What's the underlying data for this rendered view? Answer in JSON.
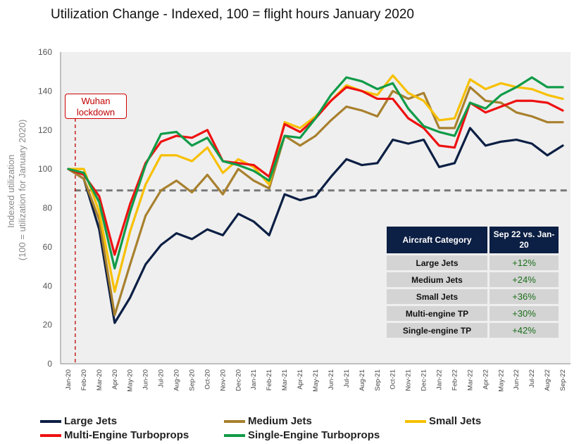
{
  "title": "Utilization Change - Indexed, 100 = flight hours January 2020",
  "annotation": {
    "line1": "Wuhan",
    "line2": "lockdown"
  },
  "table": {
    "headers": [
      "Aircraft Category",
      "Sep 22 vs. Jan-20"
    ],
    "rows": [
      [
        "Large Jets",
        "+12%"
      ],
      [
        "Medium Jets",
        "+24%"
      ],
      [
        "Small Jets",
        "+36%"
      ],
      [
        "Multi-engine TP",
        "+30%"
      ],
      [
        "Single-engine TP",
        "+42%"
      ]
    ]
  },
  "chart_data": {
    "type": "line",
    "title": "Utilization Change - Indexed, 100 = flight hours January 2020",
    "ylabel": "Indexed utilization (100 = utilization for January 2020)",
    "xlabel": "",
    "ylim": [
      0,
      160
    ],
    "yticks": [
      0,
      20,
      40,
      60,
      80,
      100,
      120,
      140,
      160
    ],
    "grid": false,
    "legend_position": "bottom",
    "reference_line": 89,
    "event_line": {
      "x": "Jan-20",
      "label": "Wuhan lockdown"
    },
    "categories": [
      "Jan-20",
      "Feb-20",
      "Mar-20",
      "Apr-20",
      "May-20",
      "Jun-20",
      "Jul-20",
      "Aug-20",
      "Sep-20",
      "Oct-20",
      "Nov-20",
      "Dec-20",
      "Jan-21",
      "Feb-21",
      "Mar-21",
      "Apr-21",
      "May-21",
      "Jun-21",
      "Jul-21",
      "Aug-21",
      "Sep-21",
      "Oct-21",
      "Nov-21",
      "Dec-21",
      "Jan-22",
      "Feb-22",
      "Mar-22",
      "Apr-22",
      "May-22",
      "Jun-22",
      "Jul-22",
      "Aug-22",
      "Sep-22"
    ],
    "series": [
      {
        "name": "Large Jets",
        "color": "#0c1f44",
        "values": [
          100,
          95,
          69,
          21,
          34,
          51,
          61,
          67,
          64,
          69,
          66,
          77,
          73,
          66,
          87,
          84,
          86,
          96,
          105,
          102,
          103,
          115,
          113,
          115,
          101,
          103,
          121,
          112,
          114,
          115,
          113,
          107,
          112
        ]
      },
      {
        "name": "Medium Jets",
        "color": "#a8802e",
        "values": [
          100,
          95,
          74,
          25,
          51,
          76,
          89,
          94,
          88,
          97,
          87,
          100,
          94,
          90,
          117,
          112,
          117,
          125,
          132,
          130,
          127,
          140,
          136,
          139,
          121,
          121,
          142,
          135,
          134,
          129,
          127,
          124,
          124
        ]
      },
      {
        "name": "Small Jets",
        "color": "#f7c000",
        "values": [
          100,
          100,
          78,
          37,
          68,
          92,
          107,
          107,
          104,
          111,
          98,
          105,
          101,
          92,
          124,
          121,
          127,
          135,
          143,
          140,
          138,
          148,
          139,
          135,
          125,
          126,
          146,
          141,
          144,
          142,
          141,
          138,
          136
        ]
      },
      {
        "name": "Multi-Engine Turboprops",
        "color": "#ee1111",
        "values": [
          100,
          97,
          86,
          56,
          82,
          103,
          114,
          117,
          116,
          120,
          104,
          103,
          102,
          96,
          123,
          119,
          126,
          135,
          142,
          140,
          136,
          136,
          126,
          121,
          112,
          111,
          134,
          129,
          132,
          135,
          135,
          134,
          130
        ]
      },
      {
        "name": "Single-Engine Turboprops",
        "color": "#109b48",
        "values": [
          100,
          98,
          83,
          49,
          78,
          102,
          118,
          119,
          112,
          116,
          104,
          102,
          99,
          94,
          117,
          116,
          126,
          138,
          147,
          145,
          141,
          144,
          131,
          122,
          119,
          117,
          134,
          131,
          138,
          142,
          147,
          142,
          142
        ]
      }
    ]
  }
}
